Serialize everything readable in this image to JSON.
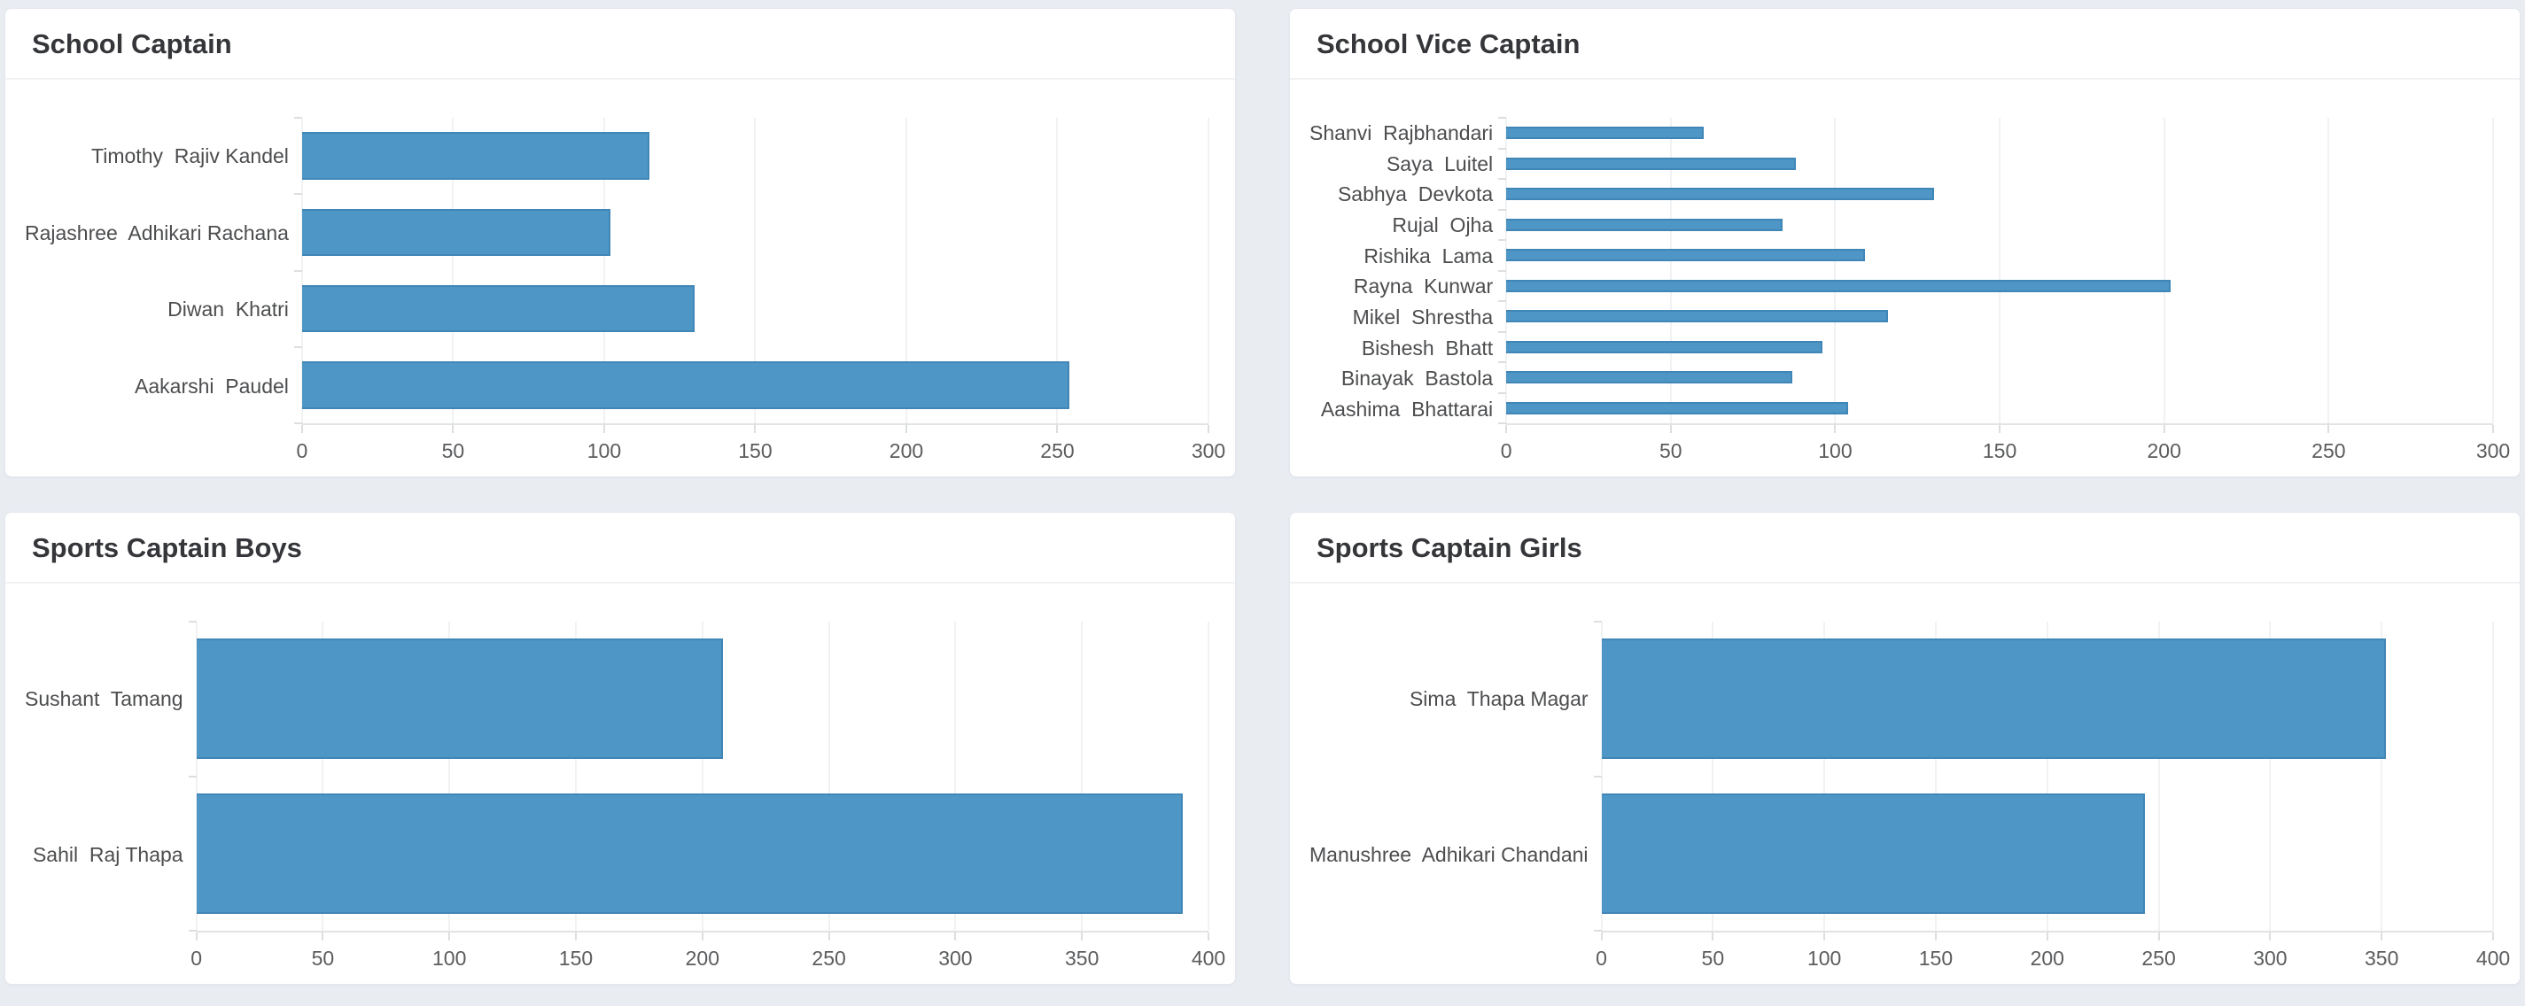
{
  "page": {
    "background_color": "#e9edf2",
    "card_color": "#ffffff"
  },
  "chart_data": [
    {
      "type": "bar",
      "orientation": "horizontal",
      "title": "School Captain",
      "categories": [
        "Timothy  Rajiv Kandel",
        "Rajashree  Adhikari Rachana",
        "Diwan  Khatri",
        "Aakarshi  Paudel"
      ],
      "values": [
        115,
        102,
        130,
        254
      ],
      "xticks": [
        0,
        50,
        100,
        150,
        200,
        250,
        300
      ],
      "xlim": [
        0,
        300
      ],
      "xlabel": "",
      "ylabel": "",
      "grid": true,
      "legend": false,
      "bar_color": "#4d96c6",
      "bar_border_color": "#4086b6",
      "bar_fraction": 0.62
    },
    {
      "type": "bar",
      "orientation": "horizontal",
      "title": "School Vice Captain",
      "categories": [
        "Shanvi  Rajbhandari",
        "Saya  Luitel",
        "Sabhya  Devkota",
        "Rujal  Ojha",
        "Rishika  Lama",
        "Rayna  Kunwar",
        "Mikel  Shrestha",
        "Bishesh  Bhatt",
        "Binayak  Bastola",
        "Aashima  Bhattarai"
      ],
      "values": [
        60,
        88,
        130,
        84,
        109,
        202,
        116,
        96,
        87,
        104
      ],
      "xticks": [
        0,
        50,
        100,
        150,
        200,
        250,
        300
      ],
      "xlim": [
        0,
        300
      ],
      "xlabel": "",
      "ylabel": "",
      "grid": true,
      "legend": false,
      "bar_color": "#4d96c6",
      "bar_border_color": "#4086b6",
      "bar_fraction": 0.4
    },
    {
      "type": "bar",
      "orientation": "horizontal",
      "title": "Sports Captain Boys",
      "categories": [
        "Sushant  Tamang",
        "Sahil  Raj Thapa"
      ],
      "values": [
        208,
        390
      ],
      "xticks": [
        0,
        50,
        100,
        150,
        200,
        250,
        300,
        350,
        400
      ],
      "xlim": [
        0,
        400
      ],
      "xlabel": "",
      "ylabel": "",
      "grid": true,
      "legend": false,
      "bar_color": "#4d96c6",
      "bar_border_color": "#4086b6",
      "bar_fraction": 0.78
    },
    {
      "type": "bar",
      "orientation": "horizontal",
      "title": "Sports Captain Girls",
      "categories": [
        "Sima  Thapa Magar",
        "Manushree  Adhikari Chandani"
      ],
      "values": [
        352,
        244
      ],
      "xticks": [
        0,
        50,
        100,
        150,
        200,
        250,
        300,
        350,
        400
      ],
      "xlim": [
        0,
        400
      ],
      "xlabel": "",
      "ylabel": "",
      "grid": true,
      "legend": false,
      "bar_color": "#4d96c6",
      "bar_border_color": "#4086b6",
      "bar_fraction": 0.78
    }
  ]
}
